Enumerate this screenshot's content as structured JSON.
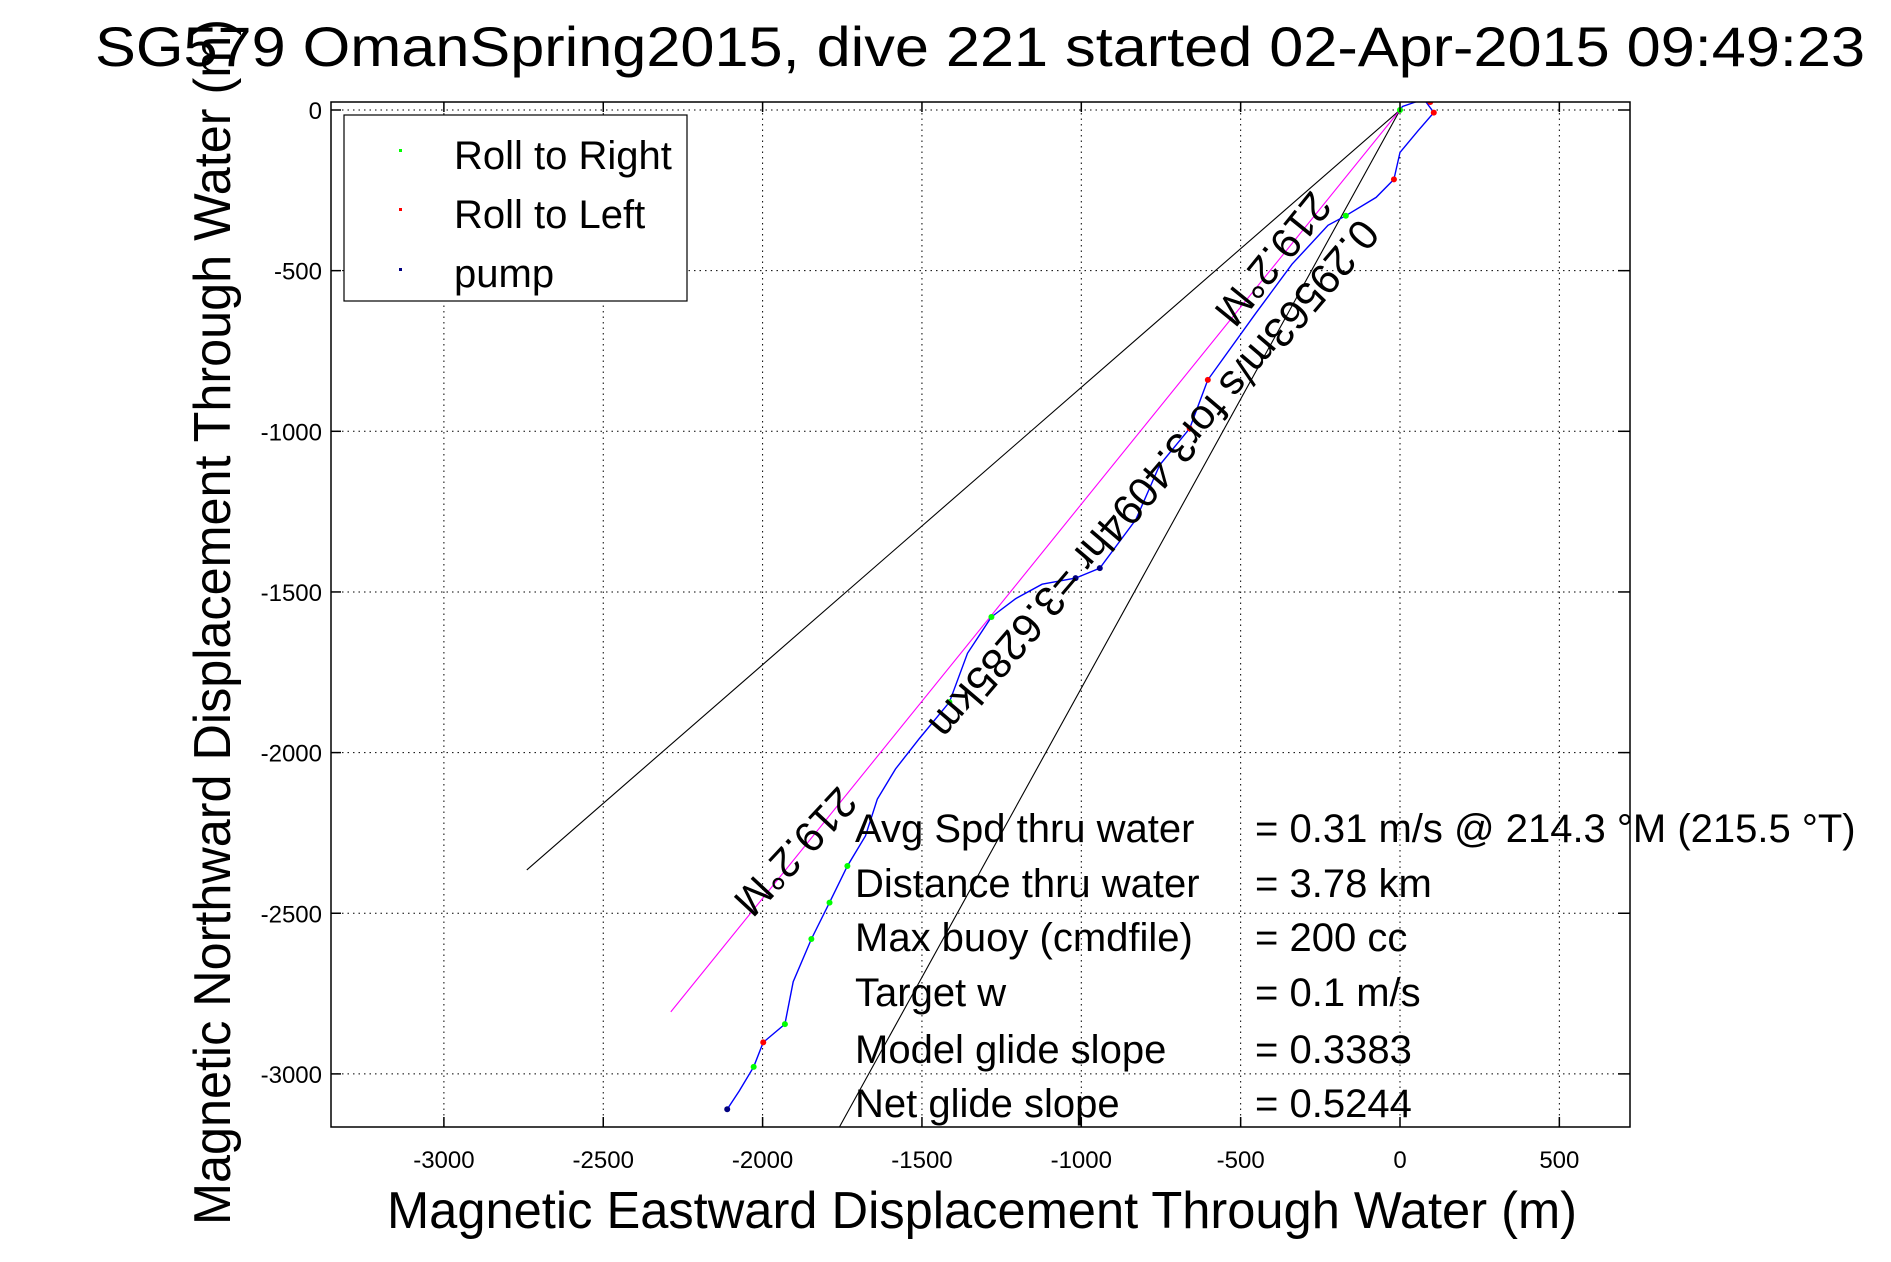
{
  "chart_data": {
    "type": "line",
    "title": "SG579 OmanSpring2015, dive 221 started 02-Apr-2015 09:49:23",
    "xlabel": "Magnetic Eastward Displacement Through Water (m)",
    "ylabel": "Magnetic Northward Displacement Through Water (m)",
    "xlim": [
      -3355,
      722
    ],
    "ylim": [
      -3165,
      25
    ],
    "xticks": [
      -3000,
      -2500,
      -2000,
      -1500,
      -1000,
      -500,
      0,
      500
    ],
    "yticks": [
      0,
      -500,
      -1000,
      -1500,
      -2000,
      -2500,
      -3000
    ],
    "grid": true,
    "legend": {
      "placement": "top-left",
      "entries": [
        {
          "label": "Roll to Right",
          "color": "#00ff00"
        },
        {
          "label": "Roll to Left",
          "color": "#ff0000"
        },
        {
          "label": "pump",
          "color": "#000080"
        }
      ]
    },
    "series": [
      {
        "name": "track",
        "color": "#0000ff",
        "x": [
          0,
          8,
          75,
          106,
          57,
          0,
          -19,
          -75,
          -170,
          -226,
          -339,
          -452,
          -603,
          -660,
          -754,
          -829,
          -942,
          -1018,
          -1123,
          -1206,
          -1282,
          -1357,
          -1414,
          -1508,
          -1583,
          -1640,
          -1677,
          -1734,
          -1790,
          -1847,
          -1904,
          -1930,
          -1998,
          -2028,
          -2073,
          -2111
        ],
        "y": [
          0,
          11,
          34,
          -8,
          -64,
          -132,
          -216,
          -272,
          -329,
          -359,
          -480,
          -632,
          -840,
          -991,
          -1105,
          -1275,
          -1426,
          -1457,
          -1476,
          -1521,
          -1578,
          -1691,
          -1843,
          -1956,
          -2051,
          -2145,
          -2259,
          -2353,
          -2467,
          -2580,
          -2713,
          -2845,
          -2902,
          -2978,
          -3053,
          -3110
        ]
      },
      {
        "name": "heading-line",
        "color": "#ff00ff",
        "x": [
          0,
          -2288
        ],
        "y": [
          0,
          -2807
        ]
      },
      {
        "name": "heading-bound-1",
        "color": "#000000",
        "x": [
          0,
          -2740
        ],
        "y": [
          0,
          -2365
        ]
      },
      {
        "name": "heading-bound-2",
        "color": "#000000",
        "x": [
          0,
          -1760
        ],
        "y": [
          0,
          -3167
        ]
      }
    ],
    "markers": {
      "roll_right": {
        "x": [
          0,
          -170,
          -1282,
          -1414,
          -1734,
          -1790,
          -1847,
          -1930,
          -2028
        ],
        "y": [
          0,
          -329,
          -1578,
          -1843,
          -2353,
          -2467,
          -2580,
          -2845,
          -2978
        ]
      },
      "roll_left": {
        "x": [
          75,
          95,
          106,
          20,
          -19,
          -603,
          -660,
          -1998
        ],
        "y": [
          34,
          25,
          -8,
          40,
          -216,
          -840,
          -991,
          -2902
        ]
      },
      "pump": {
        "x": [
          -942,
          -1018,
          -2111
        ],
        "y": [
          -1426,
          -1457,
          -3110
        ]
      }
    },
    "annotations": {
      "heading_top": "219.2°M",
      "speed_line": "0.29563m/s for3.4094hr =3.6285km",
      "heading_bottom": "219.2°M"
    },
    "stats": [
      {
        "label": "Avg Spd thru water",
        "value": "=  0.31 m/s @ 214.3 °M (215.5 °T)"
      },
      {
        "label": "Distance thru water",
        "value": "=  3.78 km"
      },
      {
        "label": "Max buoy (cmdfile)",
        "value": "= 200 cc"
      },
      {
        "label": "Target w",
        "value": "= 0.1 m/s"
      },
      {
        "label": "Model glide slope",
        "value": "= 0.3383"
      },
      {
        "label": "Net glide slope",
        "value": "= 0.5244"
      }
    ]
  }
}
